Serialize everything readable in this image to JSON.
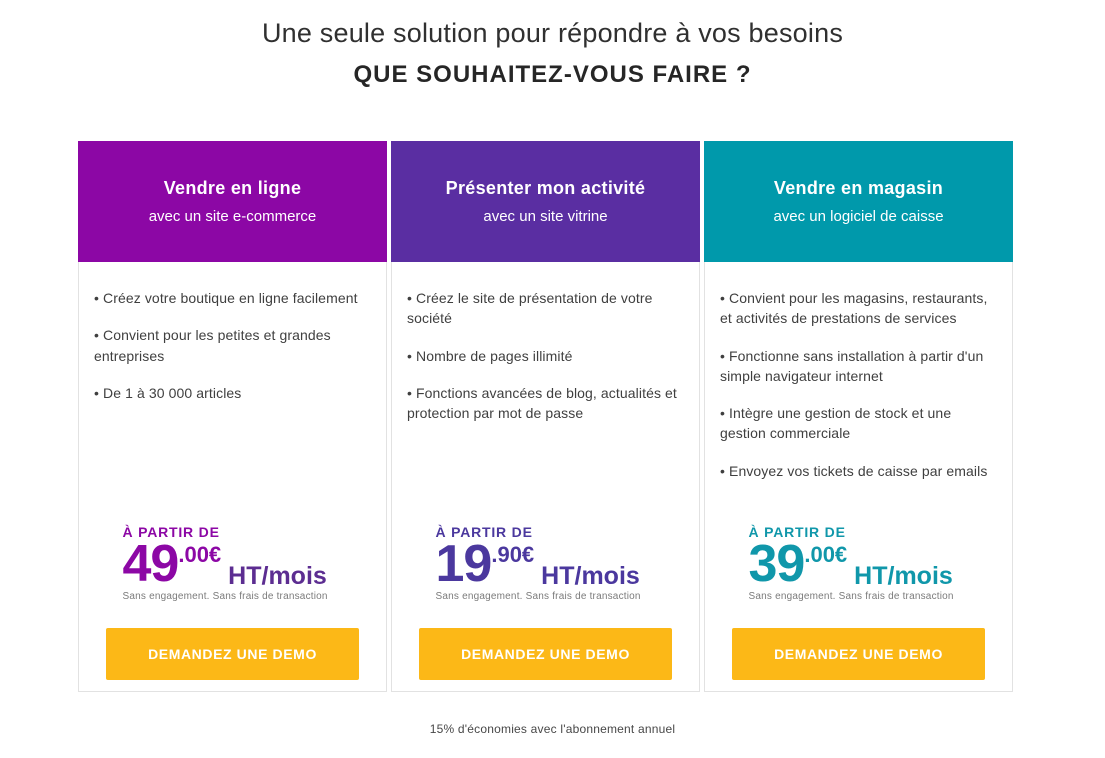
{
  "page": {
    "title": "Une seule solution pour répondre à vos besoins",
    "subtitle": "QUE SOUHAITEZ-VOUS FAIRE ?",
    "footnote": "15% d'économies avec l'abonnement annuel"
  },
  "colors": {
    "card1_accent": "#8c07a5",
    "card1_unit": "#5c2d91",
    "card2_accent": "#5a2ea2",
    "card2_price": "#4b389e",
    "card3_accent": "#0099ab",
    "card3_price": "#1097aa",
    "button_bg": "#fcb817",
    "card_border": "#e2e2e2",
    "body_text": "#3f3f3f",
    "fineprint_color": "#7b7b7b"
  },
  "cards": [
    {
      "title": "Vendre en ligne",
      "subtitle": "avec un site e-commerce",
      "bullets": [
        "Créez votre boutique en ligne facilement",
        "Convient pour les petites et grandes entreprises",
        "De 1 à 30 000 articles"
      ],
      "price_prefix": "À PARTIR DE",
      "price_int": "49",
      "price_dec": ".00€",
      "price_unit": "HT/mois",
      "fineprint": "Sans engagement. Sans frais de transaction",
      "cta": "DEMANDEZ UNE DEMO"
    },
    {
      "title": "Présenter mon activité",
      "subtitle": "avec un site vitrine",
      "bullets": [
        "Créez le site de présentation de votre société",
        "Nombre de pages illimité",
        "Fonctions avancées de blog, actualités et protection par mot de passe"
      ],
      "price_prefix": "À PARTIR DE",
      "price_int": "19",
      "price_dec": ".90€",
      "price_unit": "HT/mois",
      "fineprint": "Sans engagement. Sans frais de transaction",
      "cta": "DEMANDEZ UNE DEMO"
    },
    {
      "title": "Vendre en magasin",
      "subtitle": "avec un logiciel de caisse",
      "bullets": [
        "Convient pour les magasins, restaurants, et activités de prestations de services",
        "Fonctionne sans installation à partir d'un simple navigateur internet",
        "Intègre une gestion de stock et une gestion commerciale",
        "Envoyez vos tickets de caisse par emails"
      ],
      "price_prefix": "À PARTIR DE",
      "price_int": "39",
      "price_dec": ".00€",
      "price_unit": "HT/mois",
      "fineprint": "Sans engagement. Sans frais de transaction",
      "cta": "DEMANDEZ UNE DEMO"
    }
  ]
}
